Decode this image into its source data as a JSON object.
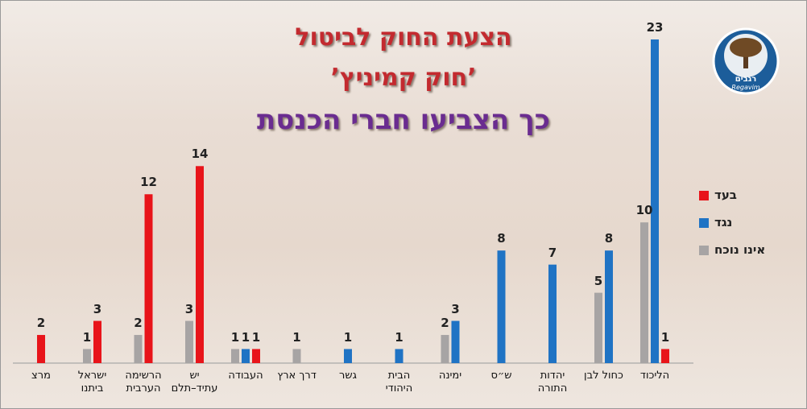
{
  "chart_data": {
    "type": "bar",
    "title": "הצעת החוק לביטול",
    "subtitle": "’חוק קמיניץ’",
    "heading": "כך הצביעו חברי הכנסת",
    "categories": [
      "מרצ",
      "ישראל ביתנו",
      "הרשימה הערבית",
      "יש עתיד–תלם",
      "העבודה",
      "דרך ארץ",
      "גשר",
      "הבית היהודי",
      "ימינה",
      "ש״ס",
      "יהדות התורה",
      "כחול לבן",
      "הליכוד"
    ],
    "series": [
      {
        "name": "בעד",
        "color": "#e8141a",
        "values": [
          2,
          3,
          12,
          14,
          1,
          null,
          null,
          null,
          null,
          null,
          null,
          null,
          1
        ]
      },
      {
        "name": "נגד",
        "color": "#1f73c4",
        "values": [
          null,
          null,
          null,
          null,
          1,
          null,
          1,
          1,
          3,
          8,
          7,
          8,
          23
        ]
      },
      {
        "name": "אינו נוכח",
        "color": "#a7a4a4",
        "values": [
          null,
          1,
          2,
          3,
          1,
          1,
          null,
          null,
          2,
          null,
          null,
          5,
          10
        ]
      }
    ],
    "legend": "right"
  },
  "logo": {
    "hebrew": "רגבים",
    "latin": "Regavim"
  }
}
